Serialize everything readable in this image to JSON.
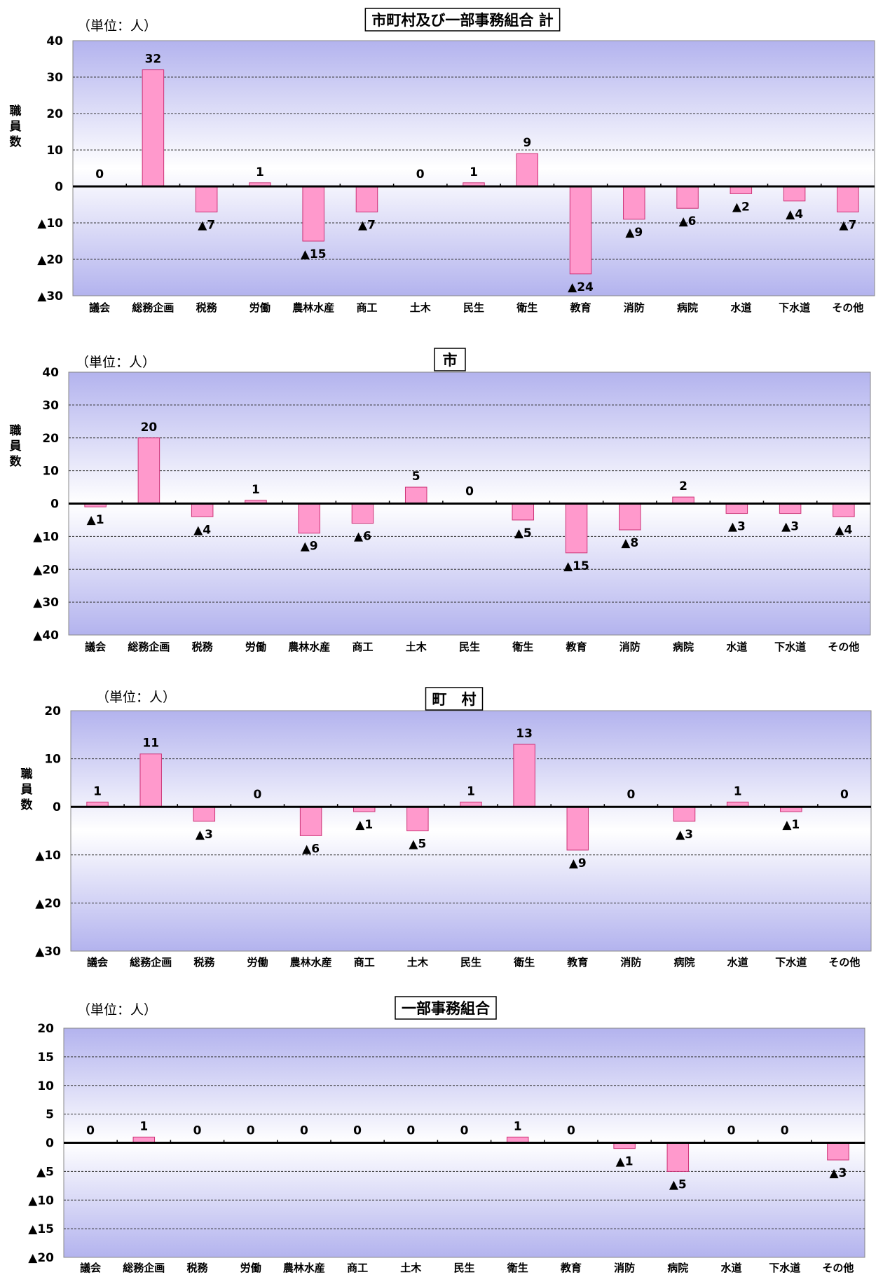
{
  "page": {
    "neg_prefix": "▲",
    "colors": {
      "bar_fill": "#ff99cc",
      "bar_stroke": "#cc3377",
      "plot_edge": "#b3b3ee",
      "plot_center": "#ffffff",
      "grid": "#333333",
      "zero_line": "#000000"
    }
  },
  "chart_data": [
    {
      "type": "bar",
      "title": "市町村及び一部事務組合 計",
      "unit": "（単位：人）",
      "ylabel": "職員数",
      "categories": [
        "議会",
        "総務企画",
        "税務",
        "労働",
        "農林水産",
        "商工",
        "土木",
        "民生",
        "衛生",
        "教育",
        "消防",
        "病院",
        "水道",
        "下水道",
        "その他"
      ],
      "values": [
        0,
        32,
        -7,
        1,
        -15,
        -7,
        0,
        1,
        9,
        -24,
        -9,
        -6,
        -2,
        -4,
        -7
      ],
      "ylim": [
        -30,
        40
      ],
      "yticks": [
        -30,
        -20,
        -10,
        0,
        10,
        20,
        30,
        40
      ],
      "grid": true,
      "legend": "none"
    },
    {
      "type": "bar",
      "title": "市",
      "unit": "（単位：人）",
      "ylabel": "職員数",
      "categories": [
        "議会",
        "総務企画",
        "税務",
        "労働",
        "農林水産",
        "商工",
        "土木",
        "民生",
        "衛生",
        "教育",
        "消防",
        "病院",
        "水道",
        "下水道",
        "その他"
      ],
      "values": [
        -1,
        20,
        -4,
        1,
        -9,
        -6,
        5,
        0,
        -5,
        -15,
        -8,
        2,
        -3,
        -3,
        -4
      ],
      "ylim": [
        -40,
        40
      ],
      "yticks": [
        -40,
        -30,
        -20,
        -10,
        0,
        10,
        20,
        30,
        40
      ],
      "grid": true,
      "legend": "none"
    },
    {
      "type": "bar",
      "title": "町　村",
      "unit": "（単位：人）",
      "ylabel": "職員数",
      "categories": [
        "議会",
        "総務企画",
        "税務",
        "労働",
        "農林水産",
        "商工",
        "土木",
        "民生",
        "衛生",
        "教育",
        "消防",
        "病院",
        "水道",
        "下水道",
        "その他"
      ],
      "values": [
        1,
        11,
        -3,
        0,
        -6,
        -1,
        -5,
        1,
        13,
        -9,
        0,
        -3,
        1,
        -1,
        0
      ],
      "ylim": [
        -30,
        20
      ],
      "yticks": [
        -30,
        -20,
        -10,
        0,
        10,
        20
      ],
      "grid": true,
      "legend": "none"
    },
    {
      "type": "bar",
      "title": "一部事務組合",
      "unit": "（単位：人）",
      "ylabel": "",
      "categories": [
        "議会",
        "総務企画",
        "税務",
        "労働",
        "農林水産",
        "商工",
        "土木",
        "民生",
        "衛生",
        "教育",
        "消防",
        "病院",
        "水道",
        "下水道",
        "その他"
      ],
      "values": [
        0,
        1,
        0,
        0,
        0,
        0,
        0,
        0,
        1,
        0,
        -1,
        -5,
        0,
        0,
        -3
      ],
      "ylim": [
        -20,
        20
      ],
      "yticks": [
        -20,
        -15,
        -10,
        -5,
        0,
        5,
        10,
        15,
        20
      ],
      "grid": true,
      "legend": "none"
    }
  ]
}
